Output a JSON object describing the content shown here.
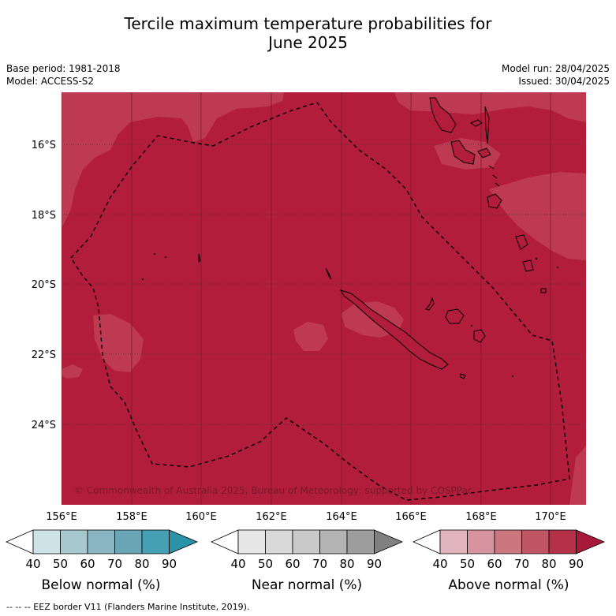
{
  "title_line1": "Tercile maximum temperature probabilities for",
  "title_line2": "June 2025",
  "meta_left": {
    "base_period": "Base period: 1981-2018",
    "model": "Model: ACCESS-S2"
  },
  "meta_right": {
    "model_run": "Model run: 28/04/2025",
    "issued": "Issued: 30/04/2025"
  },
  "lat_labels": [
    "16°S",
    "18°S",
    "20°S",
    "22°S",
    "24°S"
  ],
  "lon_labels": [
    "156°E",
    "158°E",
    "160°E",
    "162°E",
    "164°E",
    "166°E",
    "168°E",
    "170°E"
  ],
  "copyright": "© Commonwealth of Australia 2025, Bureau of Meteorology, supported by COSPPac",
  "colorbars": [
    {
      "name": "Below normal (%)",
      "ticks": [
        "40",
        "50",
        "60",
        "70",
        "80",
        "90"
      ],
      "colors": [
        "#ffffff",
        "#cde3e8",
        "#a8c8cf",
        "#8ab5c2",
        "#6aa5b5",
        "#45a0b3",
        "#2a93a8"
      ]
    },
    {
      "name": "Near normal (%)",
      "ticks": [
        "40",
        "50",
        "60",
        "70",
        "80",
        "90"
      ],
      "colors": [
        "#ffffff",
        "#e6e6e6",
        "#d9d9d9",
        "#c9c9c9",
        "#b4b4b4",
        "#9e9e9e",
        "#808080"
      ]
    },
    {
      "name": "Above normal (%)",
      "ticks": [
        "40",
        "50",
        "60",
        "70",
        "80",
        "90"
      ],
      "colors": [
        "#ffffff",
        "#e2b5bd",
        "#d8949e",
        "#cc7680",
        "#c05664",
        "#b53148",
        "#a8183a"
      ]
    }
  ],
  "map_colors": {
    "dominant": "#b11d3a",
    "lighter": "#bd3a52",
    "border": "#000000"
  },
  "footer": "--  --  -- EEZ border V11 (Flanders Marine Institute, 2019)."
}
